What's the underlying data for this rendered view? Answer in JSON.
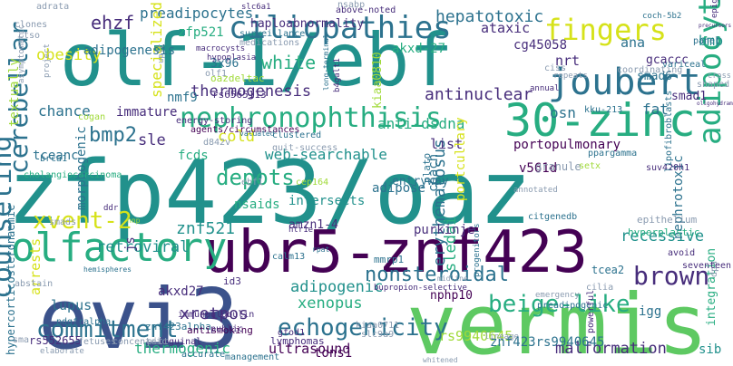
{
  "palette": {
    "teal": "#21918c",
    "green": "#5ec962",
    "lime": "#a0da39",
    "yellow": "#d6e21a",
    "blue": "#3b528b",
    "indigo": "#472d7b",
    "purple": "#440154",
    "sea": "#2c728e",
    "jade": "#27ad81",
    "mint": "#52c569",
    "grey": "#8a9bb0"
  },
  "words": [
    {
      "text": "zfp423/oaz",
      "color": "teal"
    },
    {
      "text": "olf-1/ebf",
      "color": "teal"
    },
    {
      "text": "evi3",
      "color": "blue"
    },
    {
      "text": "vermis",
      "color": "green"
    },
    {
      "text": "ubr5-znf423",
      "color": "purple"
    },
    {
      "text": "30-zinc",
      "color": "jade"
    },
    {
      "text": "joubert",
      "color": "sea"
    },
    {
      "text": "ciliopathies",
      "color": "sea"
    },
    {
      "text": "fingers",
      "color": "yellow"
    },
    {
      "text": "adipocytes",
      "color": "jade"
    },
    {
      "text": "nephronophthisis",
      "color": "jade"
    },
    {
      "text": "olfactory",
      "color": "jade"
    },
    {
      "text": "commitment",
      "color": "sea"
    },
    {
      "text": "echogenicity",
      "color": "sea"
    },
    {
      "text": "beige-like",
      "color": "jade"
    },
    {
      "text": "brown",
      "color": "indigo"
    },
    {
      "text": "nonsteroidal",
      "color": "sea"
    },
    {
      "text": "cerebellar",
      "color": "sea"
    },
    {
      "text": "xvent-2",
      "color": "yellow"
    },
    {
      "text": "bmp2",
      "color": "sea"
    },
    {
      "text": "ehzf",
      "color": "indigo"
    },
    {
      "text": "preadipocytes",
      "color": "sea"
    },
    {
      "text": "hepatotoxic",
      "color": "sea"
    },
    {
      "text": "obesity",
      "color": "yellow"
    },
    {
      "text": "white",
      "color": "jade"
    },
    {
      "text": "thermogenesis",
      "color": "indigo"
    },
    {
      "text": "antinuclear",
      "color": "indigo"
    },
    {
      "text": "anti-dsdna",
      "color": "jade"
    },
    {
      "text": "web-searchable",
      "color": "teal"
    },
    {
      "text": "depots",
      "color": "jade"
    },
    {
      "text": "znf521",
      "color": "teal"
    },
    {
      "text": "retroviral",
      "color": "teal"
    },
    {
      "text": "adipogenic",
      "color": "teal"
    },
    {
      "text": "xenopus",
      "color": "jade"
    },
    {
      "text": "xretpos",
      "color": "indigo"
    },
    {
      "text": "ultrasound",
      "color": "purple"
    },
    {
      "text": "thermogenic",
      "color": "jade"
    },
    {
      "text": "lupus",
      "color": "sea"
    },
    {
      "text": "arrests",
      "color": "yellow"
    },
    {
      "text": "sledai",
      "color": "jade"
    },
    {
      "text": "erythematosus",
      "color": "sea"
    },
    {
      "text": "recessive",
      "color": "teal"
    },
    {
      "text": "nphp10",
      "color": "purple"
    },
    {
      "text": "portopulmonary",
      "color": "purple"
    },
    {
      "text": "malformation",
      "color": "indigo"
    },
    {
      "text": "sib",
      "color": "teal"
    },
    {
      "text": "igg",
      "color": "sea"
    },
    {
      "text": "integration",
      "color": "jade"
    },
    {
      "text": "akxd27",
      "color": "indigo"
    },
    {
      "text": "akxd-27",
      "color": "jade"
    },
    {
      "text": "cg45058",
      "color": "indigo"
    },
    {
      "text": "ataxic",
      "color": "indigo"
    },
    {
      "text": "ana",
      "color": "sea"
    },
    {
      "text": "bmp",
      "color": "teal"
    },
    {
      "text": "smad1",
      "color": "indigo"
    },
    {
      "text": "smad6",
      "color": "sea"
    },
    {
      "text": "gcaccc",
      "color": "indigo"
    },
    {
      "text": "nrt",
      "color": "indigo"
    },
    {
      "text": "fat",
      "color": "sea"
    },
    {
      "text": "osn",
      "color": "sea"
    },
    {
      "text": "list",
      "color": "indigo"
    },
    {
      "text": "v561d",
      "color": "purple"
    },
    {
      "text": "entryway",
      "color": "sea"
    },
    {
      "text": "coach",
      "color": "sea"
    },
    {
      "text": "intersects",
      "color": "teal"
    },
    {
      "text": "purkinje",
      "color": "indigo"
    },
    {
      "text": "amzn1-4",
      "color": "indigo"
    },
    {
      "text": "nsaids",
      "color": "jade"
    },
    {
      "text": "fcds",
      "color": "jade"
    },
    {
      "text": "cold",
      "color": "yellow"
    },
    {
      "text": "sle",
      "color": "indigo"
    },
    {
      "text": "chance",
      "color": "sea"
    },
    {
      "text": "immature",
      "color": "indigo"
    },
    {
      "text": "zfp521",
      "color": "jade"
    },
    {
      "text": "specialized",
      "color": "yellow"
    },
    {
      "text": "haploabnormality",
      "color": "indigo"
    },
    {
      "text": "tceanc",
      "color": "sea"
    },
    {
      "text": "counseling",
      "color": "sea"
    },
    {
      "text": "js",
      "color": "indigo"
    },
    {
      "text": "morphogenic",
      "color": "sea"
    },
    {
      "text": "textually",
      "color": "lime"
    },
    {
      "text": "adipogenesis",
      "color": "sea"
    },
    {
      "text": "nmf9",
      "color": "sea"
    },
    {
      "text": "3x96",
      "color": "sea"
    },
    {
      "text": "tons1",
      "color": "purple"
    },
    {
      "text": "rs9940645",
      "color": "lime"
    },
    {
      "text": "znf423rs9940645",
      "color": "sea"
    },
    {
      "text": "adipose",
      "color": "sea"
    },
    {
      "text": "nephrotoxic",
      "color": "sea"
    },
    {
      "text": "portcullary",
      "color": "yellow"
    },
    {
      "text": "kiaa0810",
      "color": "lime"
    },
    {
      "text": "oazdeltac",
      "color": "lime"
    },
    {
      "text": "rs6565113",
      "color": "indigo"
    },
    {
      "text": "rs552655",
      "color": "indigo"
    },
    {
      "text": "znf423alpha",
      "color": "sea"
    },
    {
      "text": "gfod1",
      "color": "indigo"
    },
    {
      "text": "lymphomas",
      "color": "indigo"
    },
    {
      "text": "antismoking",
      "color": "purple"
    },
    {
      "text": "immunoglobulin",
      "color": "indigo"
    },
    {
      "text": "inguinal",
      "color": "indigo"
    },
    {
      "text": "public",
      "color": "indigo"
    },
    {
      "text": "accurate",
      "color": "sea"
    },
    {
      "text": "management",
      "color": "sea"
    },
    {
      "text": "hypercorticosteronaemic",
      "color": "sea"
    },
    {
      "text": "pdgfralpha",
      "color": "sea"
    },
    {
      "text": "abstain",
      "color": "grey"
    },
    {
      "text": "cholangiocarcinoma",
      "color": "jade"
    },
    {
      "text": "brca1",
      "color": "sea"
    },
    {
      "text": "smads",
      "color": "grey"
    },
    {
      "text": "cogan",
      "color": "lime"
    },
    {
      "text": "energy-storing",
      "color": "indigo"
    },
    {
      "text": "agents/circumstances",
      "color": "purple"
    },
    {
      "text": "valuated",
      "color": "sea"
    },
    {
      "text": "clustered",
      "color": "sea"
    },
    {
      "text": "quit-success",
      "color": "grey"
    },
    {
      "text": "d842v",
      "color": "grey"
    },
    {
      "text": "ebf1",
      "color": "grey"
    },
    {
      "text": "cep164",
      "color": "lime"
    },
    {
      "text": "htr1e",
      "color": "indigo"
    },
    {
      "text": "plato",
      "color": "sea"
    },
    {
      "text": "annotated",
      "color": "grey"
    },
    {
      "text": "citgenedb",
      "color": "sea"
    },
    {
      "text": "granule",
      "color": "grey"
    },
    {
      "text": "setx",
      "color": "lime"
    },
    {
      "text": "ppargamma",
      "color": "sea"
    },
    {
      "text": "suv420h1",
      "color": "indigo"
    },
    {
      "text": "lipofibroblasts",
      "color": "sea"
    },
    {
      "text": "dpa",
      "color": "grey"
    },
    {
      "text": "epithelium",
      "color": "grey"
    },
    {
      "text": "hyperplastic",
      "color": "jade"
    },
    {
      "text": "avoid",
      "color": "indigo"
    },
    {
      "text": "seventeen",
      "color": "indigo"
    },
    {
      "text": "tcea2",
      "color": "sea"
    },
    {
      "text": "cilia",
      "color": "grey"
    },
    {
      "text": "preadipogenic",
      "color": "sea"
    },
    {
      "text": "powerful",
      "color": "indigo"
    },
    {
      "text": "lineage",
      "color": "grey"
    },
    {
      "text": "progenitors",
      "color": "sea"
    },
    {
      "text": "kiaa0711",
      "color": "grey"
    },
    {
      "text": "slc9a9",
      "color": "grey"
    },
    {
      "text": "calm13",
      "color": "sea"
    },
    {
      "text": "mmrp1",
      "color": "sea"
    },
    {
      "text": "bupropion-selective",
      "color": "indigo"
    },
    {
      "text": "id3",
      "color": "indigo"
    },
    {
      "text": "hnp",
      "color": "lime"
    },
    {
      "text": "ddr",
      "color": "indigo"
    },
    {
      "text": "midline",
      "color": "grey"
    },
    {
      "text": "rpat",
      "color": "sea"
    },
    {
      "text": "emergency",
      "color": "grey"
    },
    {
      "text": "whitened",
      "color": "grey"
    },
    {
      "text": "sma",
      "color": "grey"
    },
    {
      "text": "elaborate",
      "color": "grey"
    },
    {
      "text": "hemispheres",
      "color": "sea"
    },
    {
      "text": "adrata",
      "color": "grey"
    },
    {
      "text": "asymptomatic",
      "color": "grey"
    },
    {
      "text": "ctso",
      "color": "grey"
    },
    {
      "text": "project",
      "color": "grey"
    },
    {
      "text": "clones",
      "color": "grey"
    },
    {
      "text": "uplc",
      "color": "grey"
    },
    {
      "text": "slc6a1",
      "color": "indigo"
    },
    {
      "text": "surveillance",
      "color": "sea"
    },
    {
      "text": "medications",
      "color": "grey"
    },
    {
      "text": "macrocysts",
      "color": "indigo"
    },
    {
      "text": "hypoplasia",
      "color": "indigo"
    },
    {
      "text": "olf1",
      "color": "grey"
    },
    {
      "text": "long-terminal",
      "color": "sea"
    },
    {
      "text": "b4galt1",
      "color": "indigo"
    },
    {
      "text": "above-noted",
      "color": "indigo"
    },
    {
      "text": "nsabp",
      "color": "grey"
    },
    {
      "text": "coch-5b2",
      "color": "sea"
    },
    {
      "text": "coordinating",
      "color": "grey"
    },
    {
      "text": "ciss",
      "color": "grey"
    },
    {
      "text": "repeats",
      "color": "grey"
    },
    {
      "text": "variceal",
      "color": "sea"
    },
    {
      "text": "panel",
      "color": "sea"
    },
    {
      "text": "shaped",
      "color": "grey"
    },
    {
      "text": "oligohydramnios",
      "color": "indigo"
    },
    {
      "text": "kku-213",
      "color": "sea"
    },
    {
      "text": "annual",
      "color": "indigo"
    },
    {
      "text": "epigenomic",
      "color": "indigo"
    },
    {
      "text": "precursors",
      "color": "indigo"
    },
    {
      "text": "cross",
      "color": "grey"
    },
    {
      "text": "fetuses",
      "color": "grey"
    },
    {
      "text": "concentric",
      "color": "grey"
    },
    {
      "text": "pitt",
      "color": "grey"
    }
  ]
}
